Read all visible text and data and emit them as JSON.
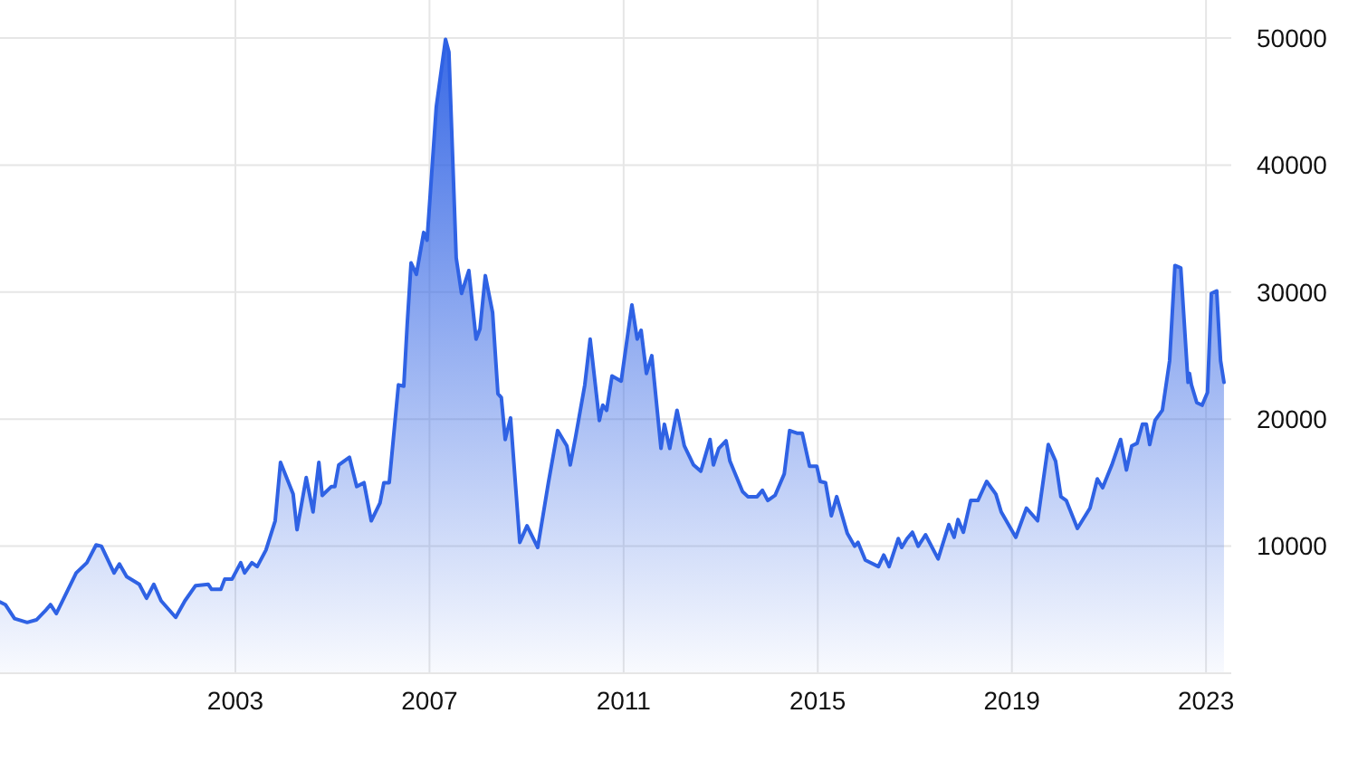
{
  "chart_data": {
    "type": "area",
    "x": [
      1998.15,
      1998.26,
      1998.45,
      1998.71,
      1998.9,
      1999.08,
      1999.19,
      1999.31,
      1999.72,
      1999.94,
      2000.13,
      2000.24,
      2000.5,
      2000.61,
      2000.76,
      2001.02,
      2001.17,
      2001.32,
      2001.47,
      2001.77,
      2001.96,
      2002.18,
      2002.44,
      2002.51,
      2002.7,
      2002.78,
      2002.93,
      2003.11,
      2003.19,
      2003.34,
      2003.45,
      2003.63,
      2003.82,
      2003.93,
      2004.19,
      2004.27,
      2004.46,
      2004.6,
      2004.72,
      2004.79,
      2004.98,
      2005.05,
      2005.13,
      2005.35,
      2005.5,
      2005.65,
      2005.8,
      2005.98,
      2006.06,
      2006.17,
      2006.36,
      2006.47,
      2006.54,
      2006.62,
      2006.73,
      2006.88,
      2006.95,
      2007.14,
      2007.33,
      2007.4,
      2007.55,
      2007.66,
      2007.81,
      2007.96,
      2008.04,
      2008.15,
      2008.3,
      2008.41,
      2008.48,
      2008.56,
      2008.67,
      2008.86,
      2009.01,
      2009.23,
      2009.45,
      2009.64,
      2009.83,
      2009.9,
      2010.01,
      2010.2,
      2010.31,
      2010.5,
      2010.57,
      2010.65,
      2010.76,
      2010.95,
      2011.17,
      2011.28,
      2011.36,
      2011.47,
      2011.58,
      2011.77,
      2011.84,
      2011.95,
      2012.1,
      2012.25,
      2012.44,
      2012.59,
      2012.78,
      2012.85,
      2012.96,
      2013.11,
      2013.19,
      2013.45,
      2013.56,
      2013.75,
      2013.86,
      2013.97,
      2014.12,
      2014.31,
      2014.42,
      2014.57,
      2014.68,
      2014.83,
      2014.98,
      2015.05,
      2015.16,
      2015.28,
      2015.39,
      2015.61,
      2015.76,
      2015.83,
      2015.98,
      2016.25,
      2016.36,
      2016.47,
      2016.66,
      2016.73,
      2016.84,
      2016.95,
      2017.07,
      2017.22,
      2017.48,
      2017.7,
      2017.81,
      2017.89,
      2018.0,
      2018.15,
      2018.3,
      2018.48,
      2018.67,
      2018.78,
      2019.08,
      2019.3,
      2019.53,
      2019.75,
      2019.9,
      2020.01,
      2020.12,
      2020.35,
      2020.61,
      2020.76,
      2020.87,
      2021.06,
      2021.24,
      2021.36,
      2021.47,
      2021.58,
      2021.69,
      2021.77,
      2021.84,
      2021.95,
      2022.1,
      2022.25,
      2022.36,
      2022.48,
      2022.63,
      2022.66,
      2022.7,
      2022.81,
      2022.92,
      2023.03,
      2023.11,
      2023.22,
      2023.3,
      2023.37
    ],
    "series": [
      {
        "color": "#2f62e4",
        "values": [
          5600,
          5400,
          4300,
          4000,
          4200,
          4900,
          5400,
          4700,
          7900,
          8700,
          10100,
          10000,
          7900,
          8600,
          7600,
          7000,
          5900,
          7000,
          5700,
          4400,
          5700,
          6900,
          7000,
          6600,
          6600,
          7400,
          7400,
          8700,
          7900,
          8700,
          8400,
          9700,
          12000,
          16600,
          14100,
          11300,
          15400,
          12700,
          16600,
          14000,
          14700,
          14700,
          16400,
          17000,
          14700,
          15000,
          12000,
          13400,
          15000,
          15000,
          22700,
          22600,
          27400,
          32300,
          31400,
          34700,
          34100,
          44600,
          49900,
          48900,
          32700,
          29900,
          31700,
          26300,
          27100,
          31300,
          28400,
          22000,
          21700,
          18400,
          20100,
          10300,
          11600,
          9900,
          15000,
          19100,
          17900,
          16400,
          18600,
          22700,
          26300,
          19900,
          21100,
          20700,
          23400,
          23000,
          29000,
          26300,
          27000,
          23600,
          25000,
          17700,
          19600,
          17700,
          20700,
          17900,
          16400,
          15900,
          18400,
          16400,
          17700,
          18300,
          16700,
          14300,
          13900,
          13900,
          14400,
          13600,
          14000,
          15700,
          19100,
          18900,
          18900,
          16300,
          16300,
          15100,
          15000,
          12400,
          13900,
          11000,
          10000,
          10300,
          8900,
          8400,
          9300,
          8400,
          10600,
          9900,
          10600,
          11100,
          10000,
          10900,
          9000,
          11700,
          10700,
          12100,
          11100,
          13600,
          13600,
          15100,
          14100,
          12700,
          10700,
          13000,
          12000,
          18000,
          16700,
          13900,
          13600,
          11400,
          13000,
          15300,
          14600,
          16400,
          18400,
          16000,
          17900,
          18100,
          19600,
          19600,
          18000,
          19900,
          20700,
          24600,
          32100,
          31900,
          22900,
          23600,
          22700,
          21300,
          21100,
          22100,
          29900,
          30100,
          24600,
          22900
        ]
      }
    ],
    "xlim": [
      1998.15,
      2023.52
    ],
    "xticks": [
      2003,
      2007,
      2011,
      2015,
      2019,
      2023
    ],
    "ylim": [
      0,
      53000
    ],
    "yticks": [
      10000,
      20000,
      30000,
      40000,
      50000
    ],
    "grid": true
  }
}
